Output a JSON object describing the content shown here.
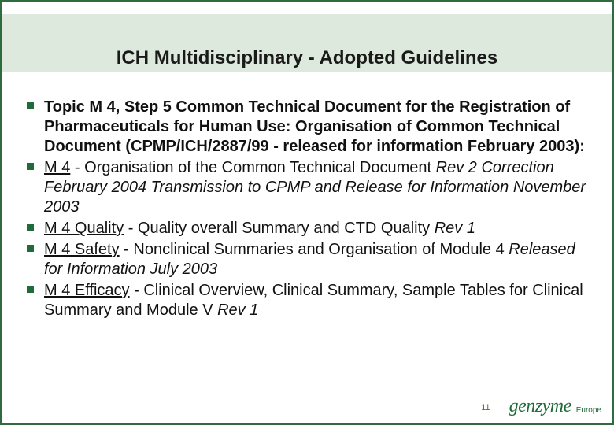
{
  "title": "ICH Multidisciplinary - Adopted Guidelines",
  "bullets": [
    {
      "runs": [
        {
          "text": "Topic M 4, Step 5 Common Technical Document for the Registration of Pharmaceuticals for Human Use: Organisation of Common Technical Document (CPMP/ICH/2887/99 - released for information February 2003):",
          "bold": true
        }
      ]
    },
    {
      "runs": [
        {
          "text": "M 4",
          "underline": true
        },
        {
          "text": " - Organisation of the Common Technical Document "
        },
        {
          "text": "Rev 2 Correction February 2004 Transmission to CPMP and Release for Information November 2003",
          "italic": true
        }
      ]
    },
    {
      "runs": [
        {
          "text": "M 4 Quality",
          "underline": true
        },
        {
          "text": " - Quality overall Summary and CTD Quality "
        },
        {
          "text": "Rev 1",
          "italic": true
        }
      ]
    },
    {
      "runs": [
        {
          "text": "M 4 Safety",
          "underline": true
        },
        {
          "text": " - Nonclinical Summaries and Organisation of Module 4 "
        },
        {
          "text": "Released for Information July 2003",
          "italic": true
        }
      ]
    },
    {
      "runs": [
        {
          "text": "M 4 Efficacy",
          "underline": true
        },
        {
          "text": " - Clinical Overview, Clinical Summary, Sample Tables for Clinical Summary and Module V "
        },
        {
          "text": "Rev 1",
          "italic": true
        }
      ]
    }
  ],
  "page_number": "11",
  "logo_text": "genzyme",
  "logo_sub": "Europe",
  "colors": {
    "border": "#2e6b3f",
    "header_band": "#dce9dc",
    "bullet_marker": "#1f6b3a",
    "logo": "#1f6b3a",
    "pagenum": "#8a5a2a"
  }
}
